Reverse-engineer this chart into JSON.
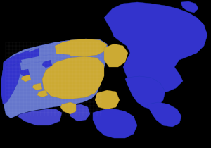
{
  "background_color": "#000000",
  "colors": {
    "dark_blue": "#3333cc",
    "mid_blue": "#4444cc",
    "light_blue": "#6677cc",
    "gold": "#ccaa33",
    "light_gold": "#ddbb55"
  },
  "figsize": [
    3.0,
    2.1
  ],
  "dpi": 100
}
